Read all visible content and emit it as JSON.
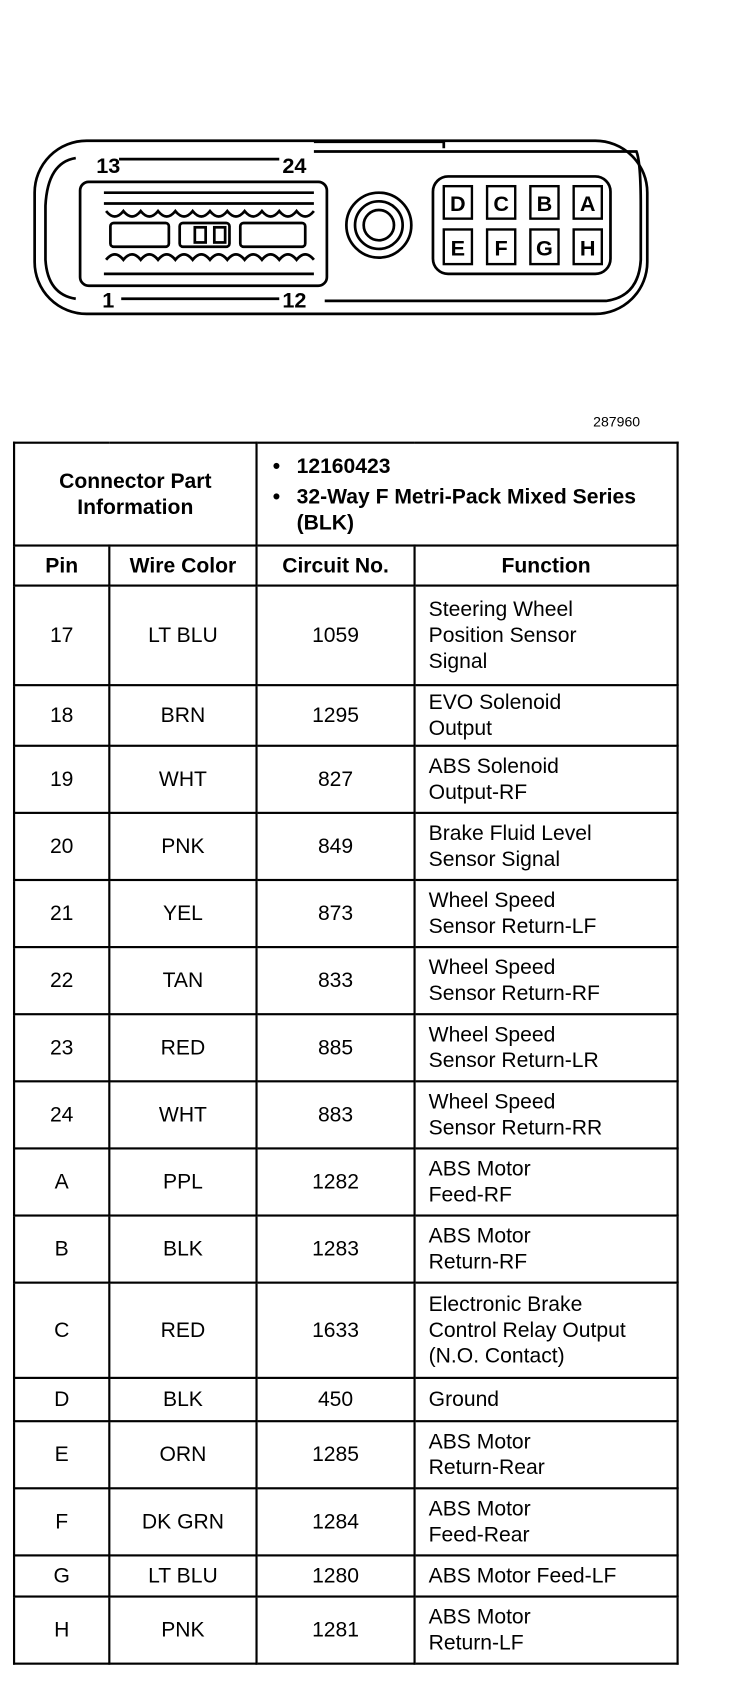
{
  "figure_id": "287960",
  "connector_diagram": {
    "cavity_labels": [
      "13",
      "24",
      "1",
      "12"
    ],
    "pin_labels_top": [
      "D",
      "C",
      "B",
      "A"
    ],
    "pin_labels_bottom": [
      "E",
      "F",
      "G",
      "H"
    ]
  },
  "connector_info": {
    "label": "Connector Part\nInformation",
    "part_number": "12160423",
    "description": "32-Way F Metri-Pack Mixed Series (BLK)"
  },
  "columns": [
    "Pin",
    "Wire Color",
    "Circuit No.",
    "Function"
  ],
  "rows": [
    {
      "pin": "17",
      "wire": "LT BLU",
      "circuit": "1059",
      "function": "Steering Wheel\nPosition Sensor\nSignal"
    },
    {
      "pin": "18",
      "wire": "BRN",
      "circuit": "1295",
      "function": "EVO Solenoid\nOutput"
    },
    {
      "pin": "19",
      "wire": "WHT",
      "circuit": "827",
      "function": "ABS Solenoid\nOutput-RF"
    },
    {
      "pin": "20",
      "wire": "PNK",
      "circuit": "849",
      "function": "Brake Fluid Level\nSensor Signal"
    },
    {
      "pin": "21",
      "wire": "YEL",
      "circuit": "873",
      "function": "Wheel Speed\nSensor Return-LF"
    },
    {
      "pin": "22",
      "wire": "TAN",
      "circuit": "833",
      "function": "Wheel Speed\nSensor Return-RF"
    },
    {
      "pin": "23",
      "wire": "RED",
      "circuit": "885",
      "function": "Wheel Speed\nSensor Return-LR"
    },
    {
      "pin": "24",
      "wire": "WHT",
      "circuit": "883",
      "function": "Wheel Speed\nSensor Return-RR"
    },
    {
      "pin": "A",
      "wire": "PPL",
      "circuit": "1282",
      "function": "ABS Motor\nFeed-RF"
    },
    {
      "pin": "B",
      "wire": "BLK",
      "circuit": "1283",
      "function": "ABS Motor\nReturn-RF"
    },
    {
      "pin": "C",
      "wire": "RED",
      "circuit": "1633",
      "function": "Electronic Brake\nControl Relay Output\n(N.O. Contact)"
    },
    {
      "pin": "D",
      "wire": "BLK",
      "circuit": "450",
      "function": "Ground"
    },
    {
      "pin": "E",
      "wire": "ORN",
      "circuit": "1285",
      "function": "ABS Motor\nReturn-Rear"
    },
    {
      "pin": "F",
      "wire": "DK GRN",
      "circuit": "1284",
      "function": "ABS Motor\nFeed-Rear"
    },
    {
      "pin": "G",
      "wire": "LT BLU",
      "circuit": "1280",
      "function": "ABS Motor Feed-LF"
    },
    {
      "pin": "H",
      "wire": "PNK",
      "circuit": "1281",
      "function": "ABS Motor\nReturn-LF"
    }
  ]
}
